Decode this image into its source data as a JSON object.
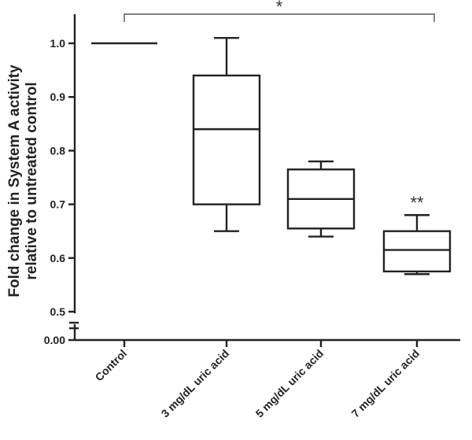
{
  "chart_data": {
    "type": "box",
    "ylabel_line1": "Fold change in System A activity",
    "ylabel_line2": "relative to untreated control",
    "y_ticks": [
      {
        "value": 0,
        "label": "0.00"
      },
      {
        "value": 0.5,
        "label": "0.5"
      },
      {
        "value": 0.6,
        "label": "0.6"
      },
      {
        "value": 0.7,
        "label": "0.7"
      },
      {
        "value": 0.8,
        "label": "0.8"
      },
      {
        "value": 0.9,
        "label": "0.9"
      },
      {
        "value": 1.0,
        "label": "1.0"
      }
    ],
    "axis_break": true,
    "grid": false,
    "categories": [
      "Control",
      "3 mg/dL uric acid",
      "5 mg/dL uric acid",
      "7 mg/dL uric acid"
    ],
    "boxes": [
      {
        "category": "Control",
        "min": 1.0,
        "q1": 1.0,
        "median": 1.0,
        "q3": 1.0,
        "max": 1.0
      },
      {
        "category": "3 mg/dL uric acid",
        "min": 0.65,
        "q1": 0.7,
        "median": 0.84,
        "q3": 0.94,
        "max": 1.01
      },
      {
        "category": "5 mg/dL uric acid",
        "min": 0.64,
        "q1": 0.655,
        "median": 0.71,
        "q3": 0.765,
        "max": 0.78
      },
      {
        "category": "7 mg/dL uric acid",
        "min": 0.57,
        "q1": 0.575,
        "median": 0.615,
        "q3": 0.65,
        "max": 0.68
      }
    ],
    "annotations": {
      "bracket_label": "*",
      "bracket_from": "Control",
      "bracket_to": "7 mg/dL uric acid",
      "point_label": "**",
      "point_category": "7 mg/dL uric acid"
    }
  }
}
